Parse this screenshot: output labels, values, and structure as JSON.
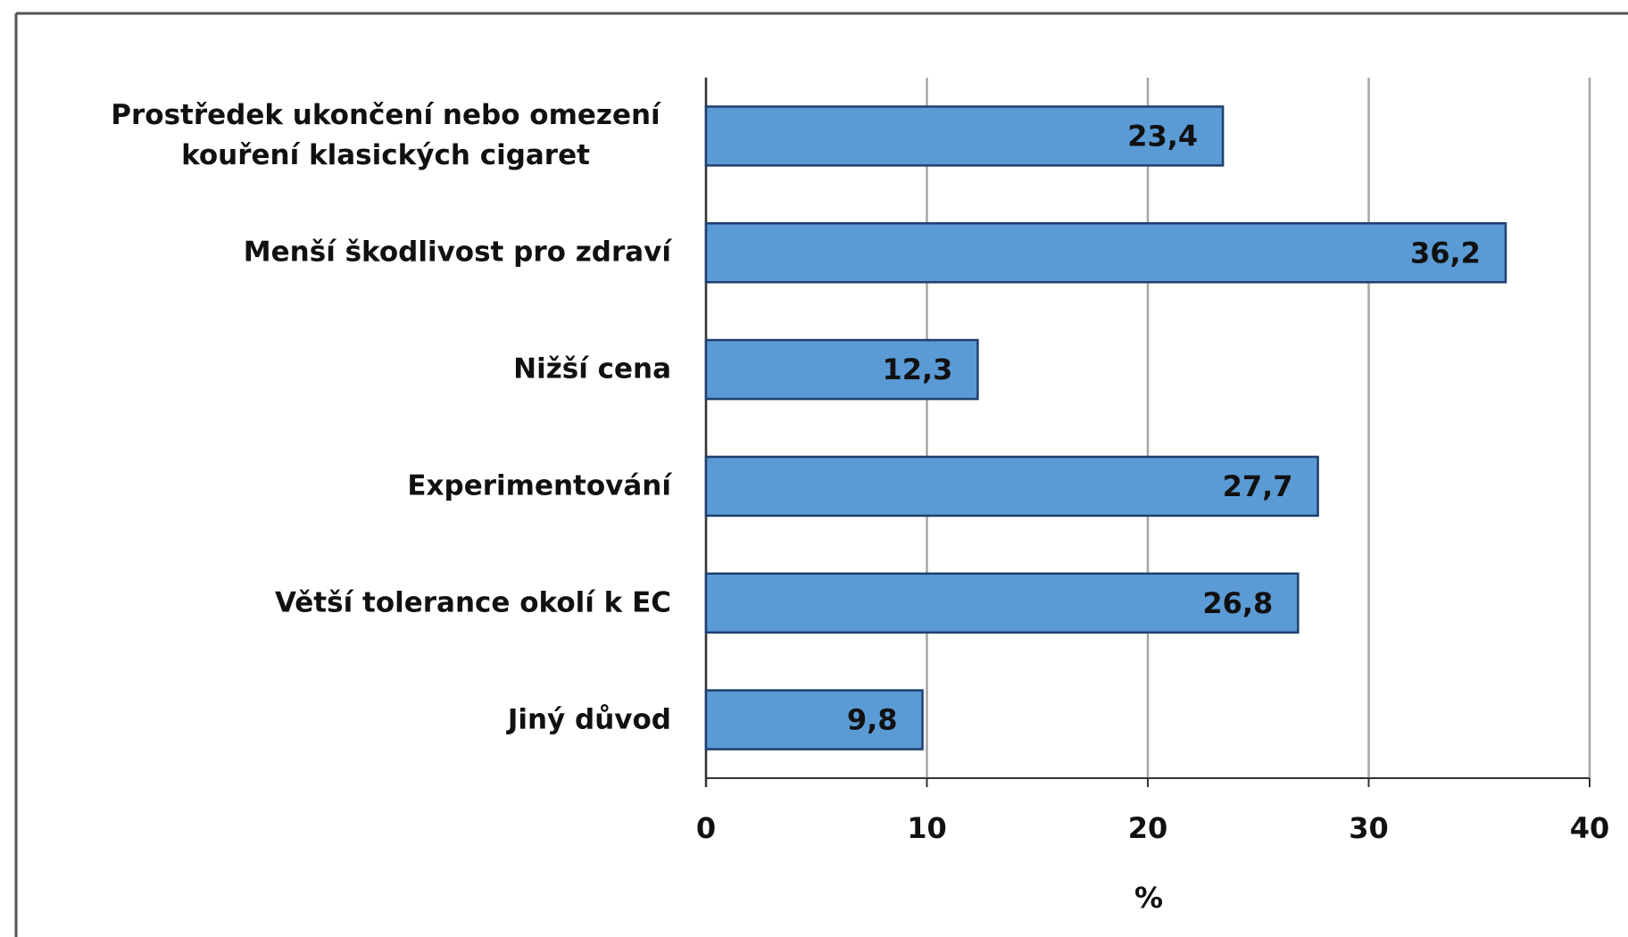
{
  "chart_data": {
    "type": "bar",
    "orientation": "horizontal",
    "categories": [
      "Prostředek ukončení nebo omezení kouření klasických cigaret",
      "Menší škodlivost pro zdraví",
      "Nižší cena",
      "Experimentování",
      "Větší tolerance okolí k EC",
      "Jiný důvod"
    ],
    "values": [
      23.4,
      36.2,
      12.3,
      27.7,
      26.8,
      9.8
    ],
    "value_labels": [
      "23,4",
      "36,2",
      "12,3",
      "27,7",
      "26,8",
      "9,8"
    ],
    "color": "#5b9bd5",
    "xlim": [
      0,
      40
    ],
    "xticks": [
      0,
      10,
      20,
      30,
      40
    ],
    "grid": true,
    "x_label": "%"
  }
}
